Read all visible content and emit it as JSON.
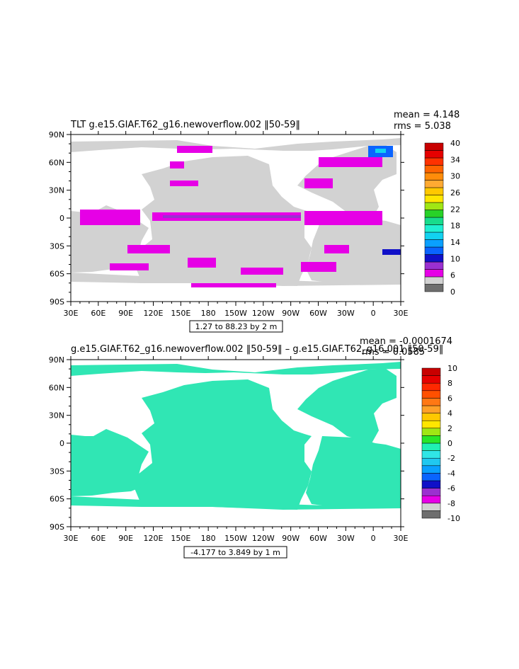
{
  "chart_data": [
    {
      "type": "heatmap",
      "title": "TLT g.e15.GIAF.T62_g16.newoverflow.002 ‖50-59‖",
      "stats": {
        "mean": "mean = 4.148",
        "rms": "rms = 5.038"
      },
      "range_label": "1.27 to 88.23 by 2 m",
      "x_ticks": [
        "30E",
        "60E",
        "90E",
        "120E",
        "150E",
        "180",
        "150W",
        "120W",
        "90W",
        "60W",
        "30W",
        "0",
        "30E"
      ],
      "y_ticks": [
        "90N",
        "60N",
        "30N",
        "0",
        "30S",
        "60S",
        "90S"
      ],
      "colorbar": {
        "colors": [
          "#6e6e6e",
          "#d2d2d2",
          "#e600e6",
          "#9b30d0",
          "#1010c8",
          "#0a64ff",
          "#0aa0ff",
          "#12d2f0",
          "#20f0d2",
          "#18dc8c",
          "#28d228",
          "#a0e614",
          "#ffe600",
          "#ffc800",
          "#ffaa32",
          "#ff8c0a",
          "#ff6400",
          "#ff3200",
          "#e60000",
          "#c80000"
        ],
        "labels": [
          "0",
          "6",
          "10",
          "14",
          "18",
          "22",
          "26",
          "30",
          "34",
          "40"
        ]
      }
    },
    {
      "type": "heatmap",
      "title": "g.e15.GIAF.T62_g16.newoverflow.002 ‖50-59‖ – g.e15.GIAF.T62_g16.001 ‖50-59‖",
      "stats": {
        "mean": "mean = -0.0001674",
        "rms": "rms = 0.0585"
      },
      "range_label": "-4.177 to 3.849 by 1 m",
      "x_ticks": [
        "30E",
        "60E",
        "90E",
        "120E",
        "150E",
        "180",
        "150W",
        "120W",
        "90W",
        "60W",
        "30W",
        "0",
        "30E"
      ],
      "y_ticks": [
        "90N",
        "60N",
        "30N",
        "0",
        "30S",
        "60S",
        "90S"
      ],
      "colorbar": {
        "colors": [
          "#6e6e6e",
          "#d2d2d2",
          "#e600e6",
          "#9b30d0",
          "#1010c8",
          "#0a64ff",
          "#0aa0ff",
          "#20c8f0",
          "#30e6e6",
          "#20f0b4",
          "#28e628",
          "#a0e614",
          "#ffe600",
          "#ffc800",
          "#ffa028",
          "#ff7814",
          "#ff5000",
          "#ff2800",
          "#e60000",
          "#c80000"
        ],
        "labels": [
          "-10",
          "-8",
          "-6",
          "-4",
          "-2",
          "0",
          "2",
          "4",
          "6",
          "8",
          "10"
        ]
      }
    }
  ]
}
